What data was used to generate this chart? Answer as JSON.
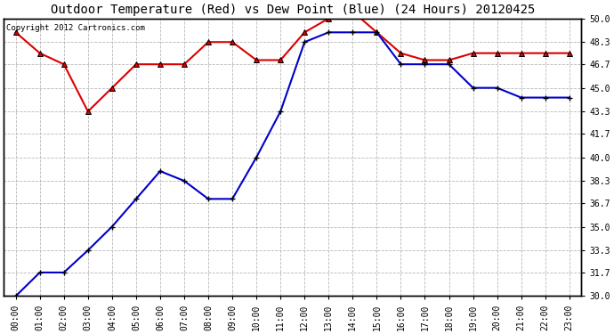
{
  "title": "Outdoor Temperature (Red) vs Dew Point (Blue) (24 Hours) 20120425",
  "copyright": "Copyright 2012 Cartronics.com",
  "x_labels": [
    "00:00",
    "01:00",
    "02:00",
    "03:00",
    "04:00",
    "05:00",
    "06:00",
    "07:00",
    "08:00",
    "09:00",
    "10:00",
    "11:00",
    "12:00",
    "13:00",
    "14:00",
    "15:00",
    "16:00",
    "17:00",
    "18:00",
    "19:00",
    "20:00",
    "21:00",
    "22:00",
    "23:00"
  ],
  "temp_red": [
    49.0,
    47.5,
    46.7,
    43.3,
    45.0,
    46.7,
    46.7,
    46.7,
    48.3,
    48.3,
    47.0,
    47.0,
    49.0,
    50.0,
    50.5,
    49.0,
    47.5,
    47.0,
    47.0,
    47.5,
    47.5,
    47.5,
    47.5,
    47.5
  ],
  "dew_blue": [
    30.0,
    31.7,
    31.7,
    33.3,
    35.0,
    37.0,
    39.0,
    38.3,
    37.0,
    37.0,
    40.0,
    43.3,
    48.3,
    49.0,
    49.0,
    49.0,
    46.7,
    46.7,
    46.7,
    45.0,
    45.0,
    44.3,
    44.3,
    44.3
  ],
  "ylim_min": 30.0,
  "ylim_max": 50.0,
  "yticks": [
    30.0,
    31.7,
    33.3,
    35.0,
    36.7,
    38.3,
    40.0,
    41.7,
    43.3,
    45.0,
    46.7,
    48.3,
    50.0
  ],
  "bg_color": "#ffffff",
  "grid_color": "#b0b0b0",
  "red_color": "#dd0000",
  "blue_color": "#0000cc",
  "marker_edge": "#000000",
  "title_fontsize": 10,
  "copyright_fontsize": 6.5,
  "tick_fontsize": 7
}
